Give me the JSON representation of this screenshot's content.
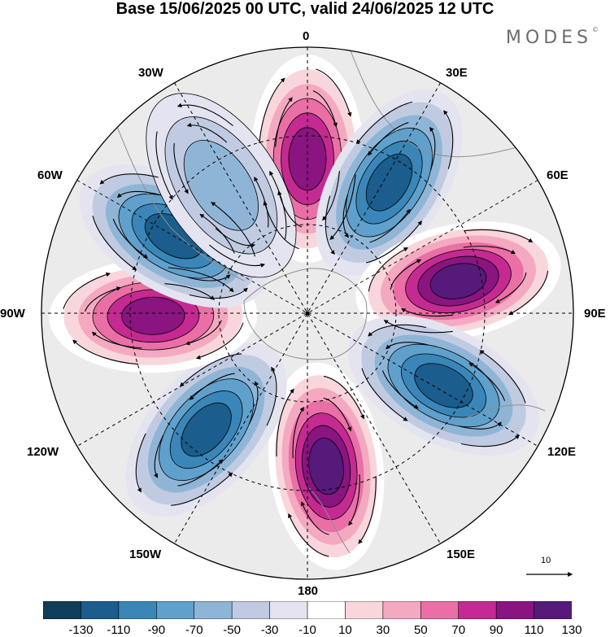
{
  "title": "Base 15/06/2025 00 UTC, valid 24/06/2025 12 UTC",
  "brand": "MODES",
  "brand_mark": "©",
  "map": {
    "projection": "polar stereographic (south pole)",
    "longitude_labels": [
      "0",
      "30E",
      "60E",
      "90E",
      "120E",
      "150E",
      "180",
      "150W",
      "120W",
      "90W",
      "60W",
      "30W"
    ],
    "reference_vector_label": "10",
    "background_color": "#ecebec",
    "coast_color": "#8f8f8f",
    "anomalies": [
      {
        "lon": 0,
        "value": 115
      },
      {
        "lon": 32,
        "value": -125
      },
      {
        "lon": 78,
        "value": 130
      },
      {
        "lon": 118,
        "value": -125
      },
      {
        "lon": 173,
        "value": 130
      },
      {
        "lon": 221,
        "value": -125
      },
      {
        "lon": 269,
        "value": 125
      },
      {
        "lon": 300,
        "value": -125
      },
      {
        "lon": 326,
        "value": -60
      }
    ]
  },
  "colorbar": {
    "tick_labels": [
      "-130",
      "-110",
      "-90",
      "-70",
      "-50",
      "-30",
      "-10",
      "10",
      "30",
      "50",
      "70",
      "90",
      "110",
      "130"
    ],
    "colors": [
      "#0f3d5a",
      "#1b5d8c",
      "#3a86b8",
      "#5fa0cc",
      "#8fb5d6",
      "#c0cbe2",
      "#e4e4f0",
      "#ffffff",
      "#f9d6dc",
      "#f4a9c0",
      "#ea6fa6",
      "#c42a91",
      "#8a1480",
      "#561a7a"
    ]
  }
}
